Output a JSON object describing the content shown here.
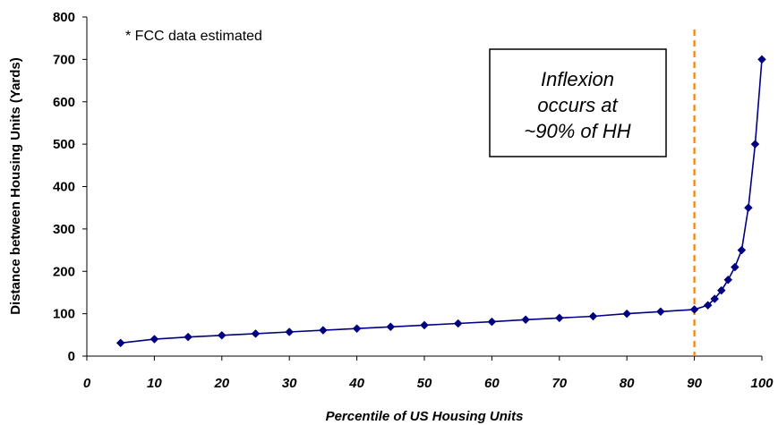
{
  "chart_data": {
    "type": "line",
    "xlabel": "Percentile of US Housing Units",
    "ylabel": "Distance between Housing Units (Yards)",
    "xlim": [
      0,
      100
    ],
    "ylim": [
      0,
      800
    ],
    "x_ticks": [
      "0",
      "10",
      "20",
      "30",
      "40",
      "50",
      "60",
      "70",
      "80",
      "90",
      "100"
    ],
    "y_ticks": [
      "0",
      "100",
      "200",
      "300",
      "400",
      "500",
      "600",
      "700",
      "800"
    ],
    "grid": false,
    "legend": "none",
    "series": [
      {
        "color": "#000080",
        "marker": "diamond",
        "x": [
          5,
          10,
          15,
          20,
          25,
          30,
          35,
          40,
          45,
          50,
          55,
          60,
          65,
          70,
          75,
          80,
          85,
          90,
          92,
          93,
          94,
          95,
          96,
          97,
          98,
          99,
          100
        ],
        "y": [
          31,
          40,
          45,
          49,
          53,
          57,
          61,
          65,
          69,
          73,
          77,
          81,
          86,
          90,
          94,
          100,
          105,
          110,
          120,
          135,
          155,
          180,
          210,
          250,
          350,
          500,
          700
        ]
      }
    ],
    "reference_line": {
      "x": 90,
      "style": "dashed",
      "color": "#ff8000"
    },
    "annotations": {
      "note": "* FCC data estimated",
      "callout_lines": [
        "Inflexion",
        "occurs at",
        "~90% of HH"
      ]
    }
  }
}
